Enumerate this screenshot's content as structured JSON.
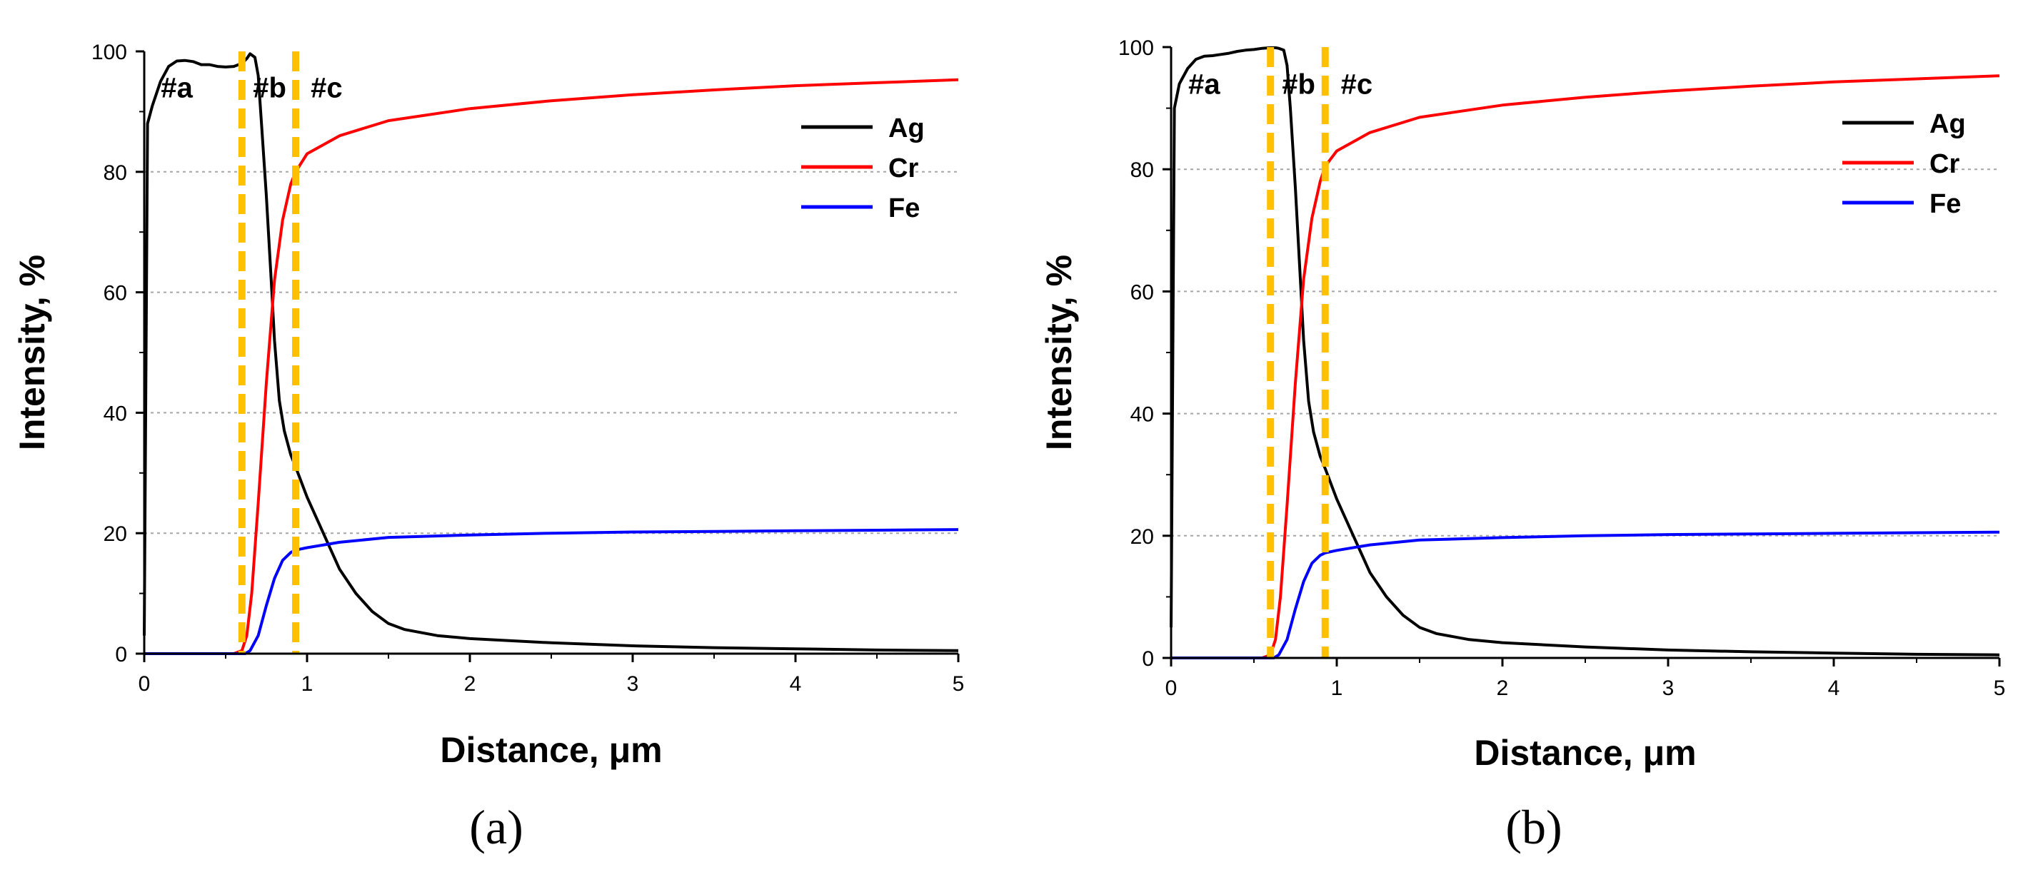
{
  "chart_data": [
    {
      "type": "line",
      "panel_label": "(a)",
      "xlabel": "Distance, μm",
      "ylabel": "Intensity, %",
      "xlim": [
        0,
        5
      ],
      "ylim": [
        0,
        100
      ],
      "xticks": [
        "0",
        "1",
        "2",
        "3",
        "4",
        "5"
      ],
      "yticks": [
        "0",
        "20",
        "40",
        "60",
        "80",
        "100"
      ],
      "gridlines_y": [
        20,
        40,
        60,
        80
      ],
      "legend": [
        "Ag",
        "Cr",
        "Fe"
      ],
      "legend_position": "top-right",
      "boundaries": [
        0.6,
        0.93
      ],
      "region_labels": [
        {
          "text": "#a",
          "x": 0.2,
          "y": 94
        },
        {
          "text": "#b",
          "x": 0.77,
          "y": 94
        },
        {
          "text": "#c",
          "x": 1.12,
          "y": 94
        }
      ],
      "series": [
        {
          "name": "Ag",
          "color": "#000000",
          "x": [
            0,
            0.02,
            0.05,
            0.1,
            0.15,
            0.2,
            0.25,
            0.3,
            0.35,
            0.4,
            0.45,
            0.5,
            0.55,
            0.6,
            0.63,
            0.65,
            0.68,
            0.7,
            0.72,
            0.75,
            0.78,
            0.8,
            0.83,
            0.86,
            0.9,
            0.93,
            1.0,
            1.1,
            1.2,
            1.3,
            1.4,
            1.5,
            1.6,
            1.8,
            2.0,
            2.5,
            3.0,
            3.5,
            4.0,
            4.5,
            5.0
          ],
          "y": [
            3,
            88,
            91,
            95,
            97.5,
            98.4,
            98.5,
            98.3,
            97.8,
            97.8,
            97.5,
            97.4,
            97.5,
            98,
            98.8,
            99.6,
            99,
            96,
            88,
            76,
            62,
            52,
            42,
            37,
            33,
            31,
            26,
            20,
            14,
            10,
            7,
            5,
            4,
            3,
            2.5,
            1.8,
            1.3,
            1,
            0.8,
            0.6,
            0.5
          ]
        },
        {
          "name": "Cr",
          "color": "#ff0000",
          "x": [
            0,
            0.55,
            0.6,
            0.63,
            0.66,
            0.7,
            0.75,
            0.8,
            0.85,
            0.9,
            0.93,
            1.0,
            1.2,
            1.5,
            2.0,
            2.5,
            3.0,
            3.5,
            4.0,
            4.5,
            5.0
          ],
          "y": [
            0,
            0,
            0.5,
            3,
            10,
            25,
            45,
            62,
            72,
            78,
            80,
            83,
            86,
            88.5,
            90.5,
            91.8,
            92.8,
            93.6,
            94.3,
            94.8,
            95.3
          ]
        },
        {
          "name": "Fe",
          "color": "#0000ff",
          "x": [
            0,
            0.62,
            0.65,
            0.7,
            0.75,
            0.8,
            0.85,
            0.9,
            0.93,
            1.0,
            1.2,
            1.5,
            2.0,
            2.5,
            3.0,
            3.5,
            4.0,
            4.5,
            5.0
          ],
          "y": [
            0,
            0,
            0.5,
            3,
            8,
            12.5,
            15.5,
            16.8,
            17.2,
            17.6,
            18.5,
            19.3,
            19.7,
            20,
            20.2,
            20.3,
            20.4,
            20.5,
            20.6
          ]
        }
      ]
    },
    {
      "type": "line",
      "panel_label": "(b)",
      "xlabel": "Distance, μm",
      "ylabel": "Intensity, %",
      "xlim": [
        0,
        5
      ],
      "ylim": [
        0,
        100
      ],
      "xticks": [
        "0",
        "1",
        "2",
        "3",
        "4",
        "5"
      ],
      "yticks": [
        "0",
        "20",
        "40",
        "60",
        "80",
        "100"
      ],
      "gridlines_y": [
        20,
        40,
        60,
        80
      ],
      "legend": [
        "Ag",
        "Cr",
        "Fe"
      ],
      "legend_position": "top-right",
      "boundaries": [
        0.6,
        0.93
      ],
      "region_labels": [
        {
          "text": "#a",
          "x": 0.2,
          "y": 94
        },
        {
          "text": "#b",
          "x": 0.77,
          "y": 94
        },
        {
          "text": "#c",
          "x": 1.12,
          "y": 94
        }
      ],
      "series": [
        {
          "name": "Ag",
          "color": "#000000",
          "x": [
            0,
            0.02,
            0.05,
            0.1,
            0.15,
            0.2,
            0.25,
            0.3,
            0.35,
            0.4,
            0.45,
            0.5,
            0.55,
            0.6,
            0.63,
            0.65,
            0.68,
            0.7,
            0.72,
            0.75,
            0.78,
            0.8,
            0.83,
            0.86,
            0.9,
            0.93,
            1.0,
            1.1,
            1.2,
            1.3,
            1.4,
            1.5,
            1.6,
            1.8,
            2.0,
            2.5,
            3.0,
            3.5,
            4.0,
            4.5,
            5.0
          ],
          "y": [
            5,
            90,
            94,
            96.5,
            98,
            98.5,
            98.6,
            98.8,
            99,
            99.3,
            99.5,
            99.6,
            99.8,
            99.9,
            99.9,
            99.8,
            99.5,
            97,
            90,
            77,
            62,
            52,
            42,
            37,
            33,
            31,
            26,
            20,
            14,
            10,
            7,
            5,
            4,
            3,
            2.5,
            1.8,
            1.3,
            1,
            0.8,
            0.6,
            0.5
          ]
        },
        {
          "name": "Cr",
          "color": "#ff0000",
          "x": [
            0,
            0.55,
            0.6,
            0.63,
            0.66,
            0.7,
            0.75,
            0.8,
            0.85,
            0.9,
            0.93,
            1.0,
            1.2,
            1.5,
            2.0,
            2.5,
            3.0,
            3.5,
            4.0,
            4.5,
            5.0
          ],
          "y": [
            0,
            0,
            0.5,
            3,
            10,
            25,
            45,
            62,
            72,
            78,
            80.5,
            83,
            86,
            88.5,
            90.5,
            91.8,
            92.8,
            93.6,
            94.3,
            94.8,
            95.3
          ]
        },
        {
          "name": "Fe",
          "color": "#0000ff",
          "x": [
            0,
            0.62,
            0.65,
            0.7,
            0.75,
            0.8,
            0.85,
            0.9,
            0.93,
            1.0,
            1.2,
            1.5,
            2.0,
            2.5,
            3.0,
            3.5,
            4.0,
            4.5,
            5.0
          ],
          "y": [
            0,
            0,
            0.5,
            3,
            8,
            12.5,
            15.5,
            16.8,
            17.2,
            17.6,
            18.5,
            19.3,
            19.7,
            20,
            20.2,
            20.3,
            20.4,
            20.5,
            20.6
          ]
        }
      ]
    }
  ],
  "colors": {
    "boundary": "#ffc000",
    "grid": "#a6a6a6",
    "axis": "#000000"
  }
}
